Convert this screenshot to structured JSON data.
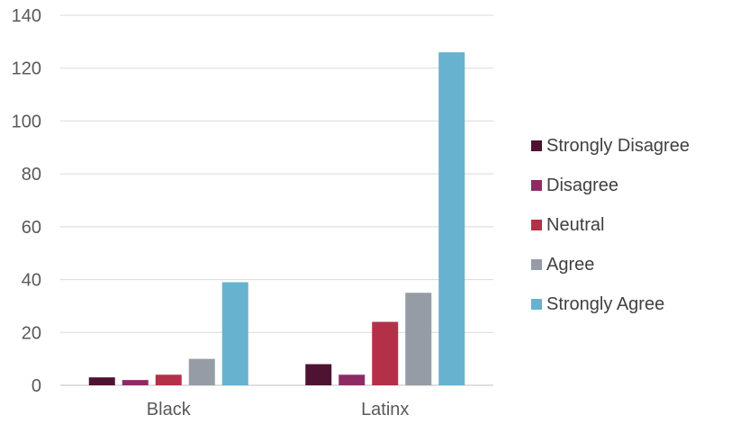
{
  "chart_data": {
    "type": "bar",
    "categories": [
      "Black",
      "Latinx"
    ],
    "series": [
      {
        "name": "Strongly Disagree",
        "color": "#4f1332",
        "values": [
          3,
          8
        ]
      },
      {
        "name": "Disagree",
        "color": "#8e2b64",
        "values": [
          2,
          4
        ]
      },
      {
        "name": "Neutral",
        "color": "#b33048",
        "values": [
          4,
          24
        ]
      },
      {
        "name": "Agree",
        "color": "#959ca5",
        "values": [
          10,
          35
        ]
      },
      {
        "name": "Strongly Agree",
        "color": "#66b2cf",
        "values": [
          39,
          126
        ]
      }
    ],
    "ylim": [
      0,
      140
    ],
    "y_ticks": [
      0,
      20,
      40,
      60,
      80,
      100,
      120,
      140
    ],
    "grid": true,
    "legend_position": "right",
    "title": "",
    "xlabel": "",
    "ylabel": ""
  }
}
